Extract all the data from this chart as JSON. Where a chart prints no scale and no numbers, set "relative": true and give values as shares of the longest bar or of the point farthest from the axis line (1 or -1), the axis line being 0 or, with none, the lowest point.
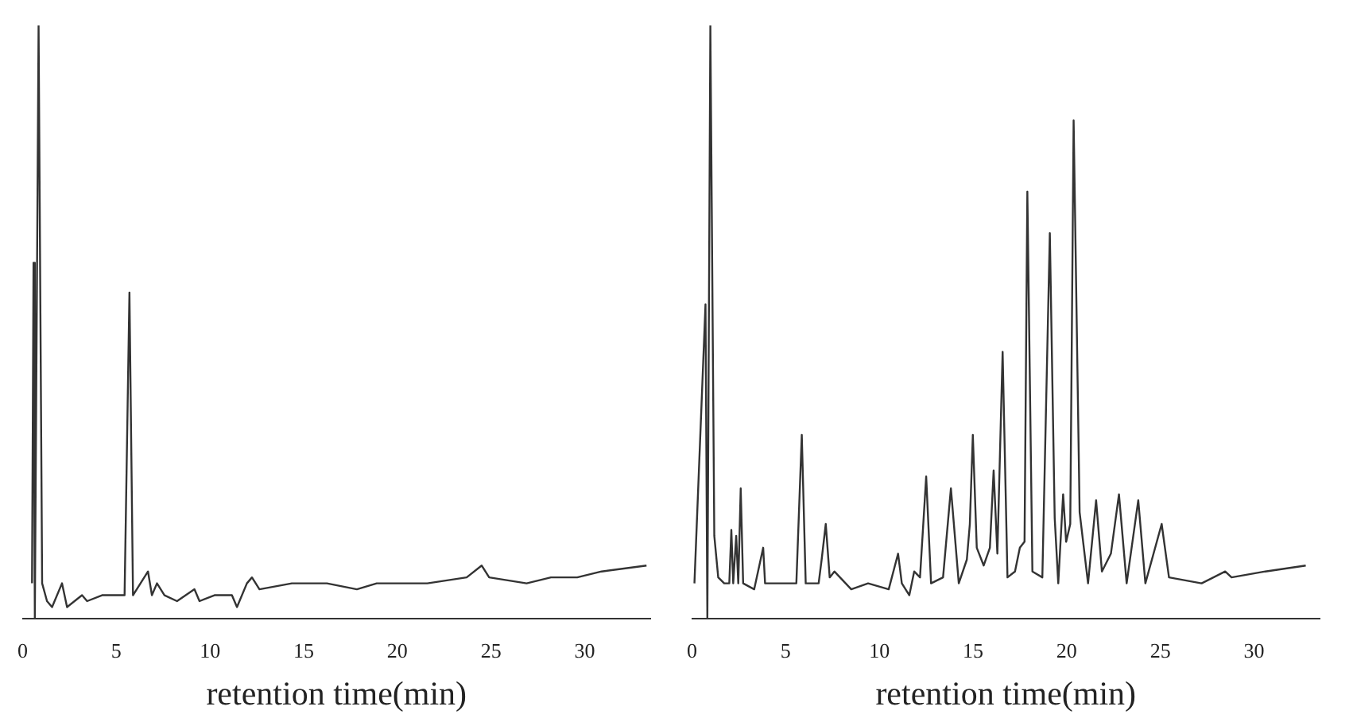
{
  "chart_data": [
    {
      "type": "line",
      "relative": true,
      "xlabel": "retention time(min)",
      "xlim": [
        0,
        33.5
      ],
      "xticks": [
        0,
        5,
        10,
        15,
        20,
        25,
        30
      ],
      "grid": false,
      "color": "#333333",
      "x": [
        0.5,
        0.58,
        0.65,
        0.85,
        1.04,
        1.3,
        1.57,
        2.1,
        2.37,
        3.17,
        3.44,
        4.24,
        5.44,
        5.7,
        5.89,
        6.69,
        6.9,
        7.17,
        7.57,
        8.24,
        9.17,
        9.44,
        10.24,
        11.17,
        11.44,
        11.97,
        12.24,
        12.64,
        14.37,
        16.24,
        17.84,
        18.9,
        19.97,
        21.6,
        23.7,
        24.5,
        24.9,
        26.9,
        28.2,
        29.6,
        30.9,
        33.3
      ],
      "values": [
        0.06,
        0.6,
        0,
        1,
        0.06,
        0.03,
        0.02,
        0.06,
        0.02,
        0.04,
        0.03,
        0.04,
        0.04,
        0.55,
        0.04,
        0.08,
        0.04,
        0.06,
        0.04,
        0.03,
        0.05,
        0.03,
        0.04,
        0.04,
        0.02,
        0.06,
        0.07,
        0.05,
        0.06,
        0.06,
        0.05,
        0.06,
        0.06,
        0.06,
        0.07,
        0.09,
        0.07,
        0.06,
        0.07,
        0.07,
        0.08,
        0.09
      ]
    },
    {
      "type": "line",
      "relative": true,
      "xlabel": "retention time(min)",
      "xlim": [
        0,
        33.5
      ],
      "xticks": [
        0,
        5,
        10,
        15,
        20,
        25,
        30
      ],
      "grid": false,
      "color": "#333333",
      "x": [
        0.13,
        0.72,
        0.82,
        0.98,
        1.19,
        1.4,
        1.72,
        1.99,
        2.1,
        2.2,
        2.36,
        2.47,
        2.6,
        2.73,
        3.32,
        3.8,
        3.9,
        5.57,
        5.86,
        6.07,
        6.76,
        6.92,
        7.14,
        7.35,
        7.6,
        8.5,
        9.4,
        10.5,
        11.0,
        11.2,
        11.6,
        11.86,
        12.17,
        12.5,
        12.76,
        13.4,
        13.82,
        14.24,
        14.67,
        14.83,
        14.99,
        15.2,
        15.57,
        15.9,
        16.1,
        16.3,
        16.58,
        16.84,
        17.24,
        17.5,
        17.75,
        17.9,
        18.17,
        18.7,
        19.1,
        19.36,
        19.55,
        19.81,
        19.97,
        20.19,
        20.37,
        20.69,
        21.14,
        21.57,
        21.88,
        22.36,
        22.79,
        23.2,
        23.82,
        24.2,
        25.07,
        25.46,
        27.2,
        28.46,
        28.8,
        30.6,
        32.76
      ],
      "values": [
        0.06,
        0.53,
        0,
        1,
        0.14,
        0.07,
        0.06,
        0.06,
        0.15,
        0.06,
        0.14,
        0.06,
        0.22,
        0.06,
        0.05,
        0.12,
        0.06,
        0.06,
        0.31,
        0.06,
        0.06,
        0.1,
        0.16,
        0.07,
        0.08,
        0.05,
        0.06,
        0.05,
        0.11,
        0.06,
        0.04,
        0.08,
        0.07,
        0.24,
        0.06,
        0.07,
        0.22,
        0.06,
        0.1,
        0.16,
        0.31,
        0.12,
        0.09,
        0.12,
        0.25,
        0.11,
        0.45,
        0.07,
        0.08,
        0.12,
        0.13,
        0.72,
        0.08,
        0.07,
        0.65,
        0.17,
        0.06,
        0.21,
        0.13,
        0.16,
        0.84,
        0.18,
        0.06,
        0.2,
        0.08,
        0.11,
        0.21,
        0.06,
        0.2,
        0.06,
        0.16,
        0.07,
        0.06,
        0.08,
        0.07,
        0.08,
        0.09
      ]
    }
  ]
}
